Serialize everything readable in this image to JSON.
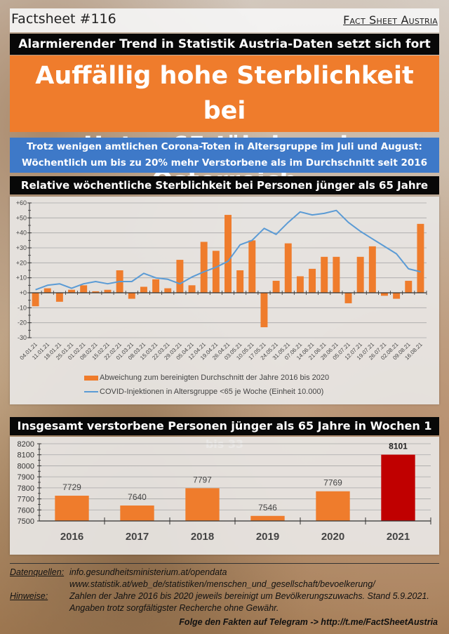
{
  "header": {
    "factsheet_number": "Factsheet #116",
    "brand": "Fact Sheet Austria"
  },
  "subtitle_top": "Alarmierender Trend in Statistik Austria-Daten setzt sich fort",
  "headline": {
    "line1": "Auffällig hohe Sterblichkeit bei",
    "line2": "Unter-65-Jährigen in Österreich"
  },
  "blue_box": {
    "line1": "Trotz wenigen amtlichen Corona-Toten in Altersgruppe im Juli und August:",
    "line2": "Wöchentlich um bis zu 20% mehr Verstorbene als im Durchschnitt seit 2016"
  },
  "colors": {
    "orange": "#ef7c2c",
    "blue_line": "#5b9bd5",
    "red": "#c00000",
    "blue_box": "#3e79c8"
  },
  "chart_data": [
    {
      "type": "bar",
      "title": "Relative wöchentliche Sterblichkeit bei Personen jünger als 65 Jahre",
      "ylim": [
        -30,
        60
      ],
      "yticks": [
        "+60",
        "+50",
        "+40",
        "+30",
        "+20",
        "+10",
        "+0",
        "-10",
        "-20",
        "-30"
      ],
      "ytick_values": [
        60,
        50,
        40,
        30,
        20,
        10,
        0,
        -10,
        -20,
        -30
      ],
      "grid": true,
      "categories": [
        "04.01.21",
        "11.01.21",
        "18.01.21",
        "25.01.21",
        "01.02.21",
        "08.02.21",
        "15.02.21",
        "22.02.21",
        "01.03.21",
        "08.03.21",
        "15.03.21",
        "22.03.21",
        "29.03.21",
        "05.04.21",
        "12.04.21",
        "19.04.21",
        "26.04.21",
        "03.05.21",
        "10.05.21",
        "17.05.21",
        "24.05.21",
        "31.05.21",
        "07.06.21",
        "14.06.21",
        "21.06.21",
        "28.06.21",
        "05.07.21",
        "12.07.21",
        "19.07.21",
        "26.07.21",
        "02.08.21",
        "09.08.21",
        "16.08.21"
      ],
      "series": [
        {
          "name": "Abweichung zum bereinigten Durchschnitt der Jahre 2016 bis 2020",
          "kind": "bar",
          "values": [
            -9,
            3,
            -6,
            2,
            5,
            1,
            2,
            15,
            -4,
            4,
            9,
            3,
            22,
            5,
            34,
            28,
            52,
            15,
            35,
            -23,
            8,
            33,
            11,
            16,
            24,
            24,
            -7,
            24,
            31,
            -2,
            -4,
            8,
            46
          ]
        },
        {
          "name": "COVID-Injektionen in Altersgruppe <65 je Woche (Einheit 10.000)",
          "kind": "line",
          "values": [
            2,
            5,
            6,
            3,
            6,
            7.5,
            6,
            7.5,
            7.5,
            13,
            10,
            9,
            6,
            10.5,
            14,
            17,
            21,
            32,
            35,
            43,
            39,
            47,
            54,
            52,
            53,
            55,
            47,
            41,
            36,
            31,
            26,
            16,
            14
          ]
        }
      ],
      "legend": "bottom"
    },
    {
      "type": "bar",
      "title": "Insgesamt verstorbene Personen jünger als 65 Jahre in Wochen 1 bis 33",
      "categories": [
        "2016",
        "2017",
        "2018",
        "2019",
        "2020",
        "2021"
      ],
      "values": [
        7729,
        7640,
        7797,
        7546,
        7769,
        8101
      ],
      "data_labels": [
        "7729",
        "7640",
        "7797",
        "7546",
        "7769",
        "8101"
      ],
      "highlight_index": 5,
      "ylim": [
        7500,
        8200
      ],
      "yticks": [
        "8200",
        "8100",
        "8000",
        "7900",
        "7800",
        "7700",
        "7600",
        "7500"
      ],
      "ytick_values": [
        8200,
        8100,
        8000,
        7900,
        7800,
        7700,
        7600,
        7500
      ],
      "grid": true,
      "xlabel": "",
      "ylabel": ""
    }
  ],
  "footer": {
    "sources_label": "Datenquellen:",
    "source1": "info.gesundheitsministerium.at/opendata",
    "source2": "www.statistik.at/web_de/statistiken/menschen_und_gesellschaft/bevoelkerung/",
    "notes_label": "Hinweise:",
    "note1": "Zahlen der Jahre 2016 bis 2020 jeweils bereinigt um Bevölkerungszuwachs. Stand 5.9.2021.",
    "note2": "Angaben trotz sorgfältigster Recherche ohne Gewähr.",
    "telegram": "Folge den Fakten auf Telegram  ->  http://t.me/FactSheetAustria"
  }
}
